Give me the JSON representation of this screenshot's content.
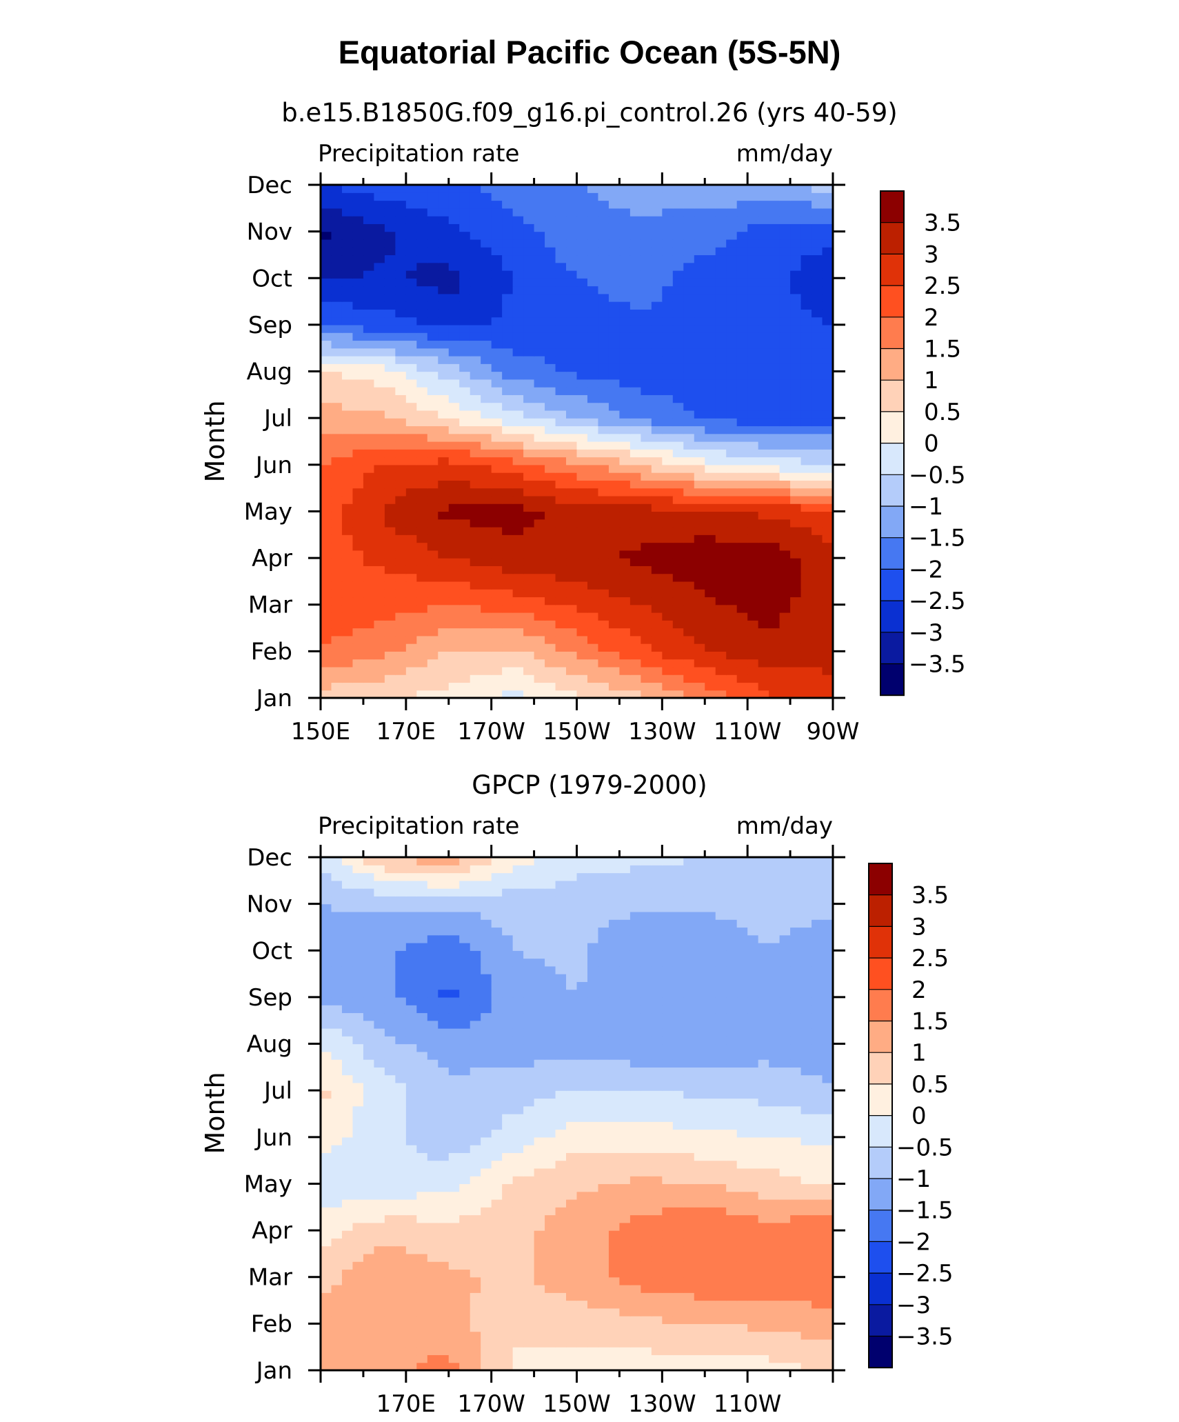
{
  "page": {
    "title": "Equatorial Pacific Ocean (5S-5N)"
  },
  "palette": {
    "levels": [
      -3.5,
      -3,
      -2.5,
      -2,
      -1.5,
      -1,
      -0.5,
      0,
      0.5,
      1,
      1.5,
      2,
      2.5,
      3,
      3.5
    ],
    "colors": [
      "#00006e",
      "#0a1aa0",
      "#0a30d2",
      "#1e4fee",
      "#4678f2",
      "#82a8f6",
      "#b4ccfa",
      "#d8e8fc",
      "#fff0e0",
      "#ffd2b8",
      "#ffac84",
      "#ff7c4e",
      "#ff5020",
      "#e03208",
      "#bc2000",
      "#8c0000"
    ]
  },
  "chart_data": [
    {
      "type": "heatmap",
      "title": "b.e15.B1850G.f09_g16.pi_control.26 (yrs 40-59)",
      "left_string": "Precipitation rate",
      "right_string": "mm/day",
      "xlabel": "",
      "ylabel": "Month",
      "x": [
        150,
        170,
        190,
        210,
        230,
        250,
        270
      ],
      "x_tick_labels": [
        "150E",
        "170E",
        "170W",
        "150W",
        "130W",
        "110W",
        "90W"
      ],
      "y": [
        "Jan",
        "Feb",
        "Mar",
        "Apr",
        "May",
        "Jun",
        "Jul",
        "Aug",
        "Sep",
        "Oct",
        "Nov",
        "Dec"
      ],
      "colorbar_labels": [
        "3.5",
        "3",
        "2.5",
        "2",
        "1.5",
        "1",
        "0.5",
        "0",
        "-0.5",
        "-1",
        "-1.5",
        "-2",
        "-2.5",
        "-3",
        "-3.5"
      ],
      "z": [
        [
          0.7,
          0.6,
          0.3,
          -0.2,
          0.4,
          0.9,
          1.6,
          2.4,
          2.9
        ],
        [
          2.0,
          1.6,
          1.0,
          0.9,
          1.6,
          2.4,
          3.0,
          3.3,
          3.1
        ],
        [
          2.3,
          2.2,
          2.0,
          2.2,
          2.6,
          3.0,
          3.4,
          3.7,
          3.2
        ],
        [
          2.3,
          2.6,
          3.0,
          3.3,
          3.4,
          3.6,
          3.8,
          3.8,
          3.2
        ],
        [
          2.2,
          3.1,
          3.6,
          3.7,
          3.3,
          3.2,
          3.1,
          2.9,
          2.6
        ],
        [
          2.0,
          2.5,
          2.7,
          2.2,
          1.6,
          1.0,
          0.2,
          -0.2,
          -0.5
        ],
        [
          1.2,
          1.1,
          0.5,
          -0.3,
          -1.0,
          -1.6,
          -2.1,
          -2.3,
          -2.2
        ],
        [
          0.6,
          0.2,
          -0.7,
          -1.7,
          -2.1,
          -2.3,
          -2.2,
          -2.3,
          -2.3
        ],
        [
          -2.0,
          -2.3,
          -2.6,
          -2.4,
          -2.2,
          -2.1,
          -2.2,
          -2.3,
          -2.5
        ],
        [
          -3.1,
          -2.9,
          -3.2,
          -2.5,
          -2.0,
          -1.8,
          -2.2,
          -2.4,
          -2.8
        ],
        [
          -3.6,
          -3.1,
          -2.6,
          -2.2,
          -1.7,
          -1.6,
          -1.8,
          -2.2,
          -2.4
        ],
        [
          -2.5,
          -2.2,
          -2.1,
          -1.8,
          -1.5,
          -1.3,
          -1.2,
          -1.1,
          -0.8
        ]
      ]
    },
    {
      "type": "heatmap",
      "title": "GPCP (1979-2000)",
      "left_string": "Precipitation rate",
      "right_string": "mm/day",
      "xlabel": "",
      "ylabel": "Month",
      "x": [
        170,
        190,
        210,
        230,
        250
      ],
      "x_tick_labels": [
        "170E",
        "170W",
        "150W",
        "130W",
        "110W"
      ],
      "y": [
        "Jan",
        "Feb",
        "Mar",
        "Apr",
        "May",
        "Jun",
        "Jul",
        "Aug",
        "Sep",
        "Oct",
        "Nov",
        "Dec"
      ],
      "colorbar_labels": [
        "3.5",
        "3",
        "2.5",
        "2",
        "1.5",
        "1",
        "0.5",
        "0",
        "-0.5",
        "-1",
        "-1.5",
        "-2",
        "-2.5",
        "-3",
        "-3.5"
      ],
      "z": [
        [
          1.1,
          1.3,
          1.7,
          0.4,
          0.3,
          0.2,
          0.2,
          0.3,
          0.6
        ],
        [
          1.2,
          1.4,
          1.2,
          0.6,
          0.7,
          0.9,
          1.0,
          1.1,
          1.3
        ],
        [
          0.8,
          1.4,
          1.1,
          0.9,
          1.3,
          1.7,
          1.9,
          1.8,
          1.9
        ],
        [
          0.3,
          0.8,
          0.7,
          0.8,
          1.3,
          1.7,
          2.0,
          1.7,
          2.0
        ],
        [
          -0.4,
          -0.3,
          -0.2,
          0.6,
          0.9,
          1.1,
          1.0,
          0.7,
          0.4
        ],
        [
          0.3,
          -0.4,
          -0.8,
          -0.3,
          0.3,
          0.3,
          0.1,
          0.0,
          -0.1
        ],
        [
          0.6,
          -0.3,
          -0.9,
          -0.7,
          -0.5,
          -0.5,
          -0.6,
          -0.7,
          -0.9
        ],
        [
          0.0,
          -0.9,
          -1.2,
          -1.3,
          -1.2,
          -1.4,
          -1.4,
          -1.2,
          -1.4
        ],
        [
          -1.2,
          -1.3,
          -2.1,
          -1.3,
          -1.0,
          -1.4,
          -1.4,
          -1.3,
          -1.2
        ],
        [
          -1.2,
          -1.4,
          -1.9,
          -1.0,
          -0.9,
          -1.5,
          -1.4,
          -1.0,
          -1.4
        ],
        [
          -1.0,
          -0.9,
          -0.9,
          -0.8,
          -0.8,
          -0.9,
          -0.9,
          -0.8,
          -0.8
        ],
        [
          -0.4,
          1.0,
          1.4,
          0.3,
          -0.3,
          -0.4,
          -0.5,
          -0.6,
          -0.7
        ]
      ]
    }
  ]
}
